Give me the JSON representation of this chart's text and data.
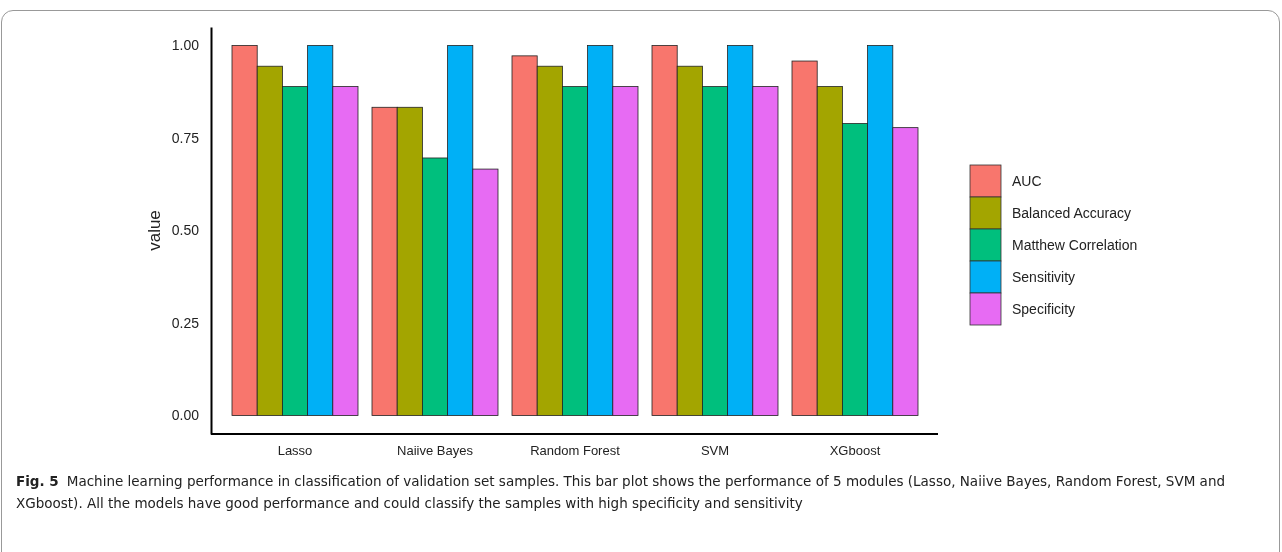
{
  "chart_data": {
    "type": "bar",
    "title": "Fig. 5",
    "ylabel": "value",
    "annotations": [
      "Machine learning performance in classification of validation set samples. This bar plot shows the performance of 5 modules (Lasso, Naiive Bayes, Random Forest, SVM and XGboost). All the models have good performance and could classify the samples with high specificity and sensitivity"
    ],
    "categories": [
      "Lasso",
      "Naiive Bayes",
      "Random Forest",
      "SVM",
      "XGboost"
    ],
    "series": [
      {
        "name": "AUC",
        "color": "#f8766d",
        "values": [
          1.0,
          0.833,
          0.972,
          1.0,
          0.958
        ]
      },
      {
        "name": "Balanced Accuracy",
        "color": "#a3a500",
        "values": [
          0.944,
          0.833,
          0.944,
          0.944,
          0.889
        ]
      },
      {
        "name": "Matthew Correlation",
        "color": "#00bf7d",
        "values": [
          0.889,
          0.696,
          0.889,
          0.889,
          0.789
        ]
      },
      {
        "name": "Sensitivity",
        "color": "#00b0f6",
        "values": [
          1.0,
          1.0,
          1.0,
          1.0,
          1.0
        ]
      },
      {
        "name": "Specificity",
        "color": "#e76bf3",
        "values": [
          0.889,
          0.666,
          0.889,
          0.889,
          0.778
        ]
      }
    ],
    "ylim": [
      -0.05,
      1.05
    ],
    "yticks": [
      {
        "value": 0,
        "label": "0.00"
      },
      {
        "value": 0.25,
        "label": "0.25"
      },
      {
        "value": 0.5,
        "label": "0.50"
      },
      {
        "value": 0.75,
        "label": "0.75"
      },
      {
        "value": 1,
        "label": "1.00"
      }
    ],
    "grid": false,
    "legend": "right"
  }
}
